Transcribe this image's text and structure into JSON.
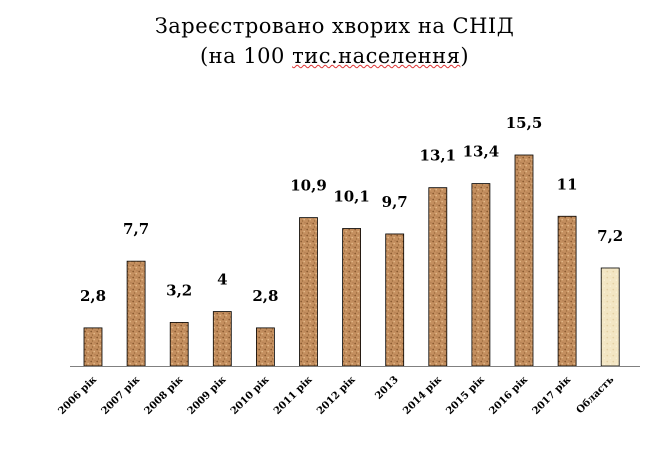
{
  "chart_data": {
    "type": "bar",
    "title_line1": "Зареєстровано хворих на СНІД",
    "title_line2_prefix": "(на 100  ",
    "title_line2_underlined": "тис.населення",
    "title_line2_suffix": ")",
    "categories": [
      "2006 рік",
      "2007 рік",
      "2008 рік",
      "2009 рік",
      "2010 рік",
      "2011 рік",
      "2012 рік",
      "2013",
      "2014 рік",
      "2015 рік",
      "2016 рік",
      "2017 рік",
      "Область"
    ],
    "values": [
      2.8,
      7.7,
      3.2,
      4,
      2.8,
      10.9,
      10.1,
      9.7,
      13.1,
      13.4,
      15.5,
      11,
      7.2
    ],
    "value_labels": [
      "2,8",
      "7,7",
      "3,2",
      "4",
      "2,8",
      "10,9",
      "10,1",
      "9,7",
      "13,1",
      "13,4",
      "15,5",
      "11",
      "7,2"
    ],
    "highlight_index": 12,
    "ylim": [
      0,
      15.5
    ],
    "grid": false,
    "legend": "none",
    "colors": {
      "bar": "#c48f5f",
      "bar_dark": "#8a5a30",
      "bar_highlight": "#f3e6c4",
      "axis": "#808080"
    }
  }
}
